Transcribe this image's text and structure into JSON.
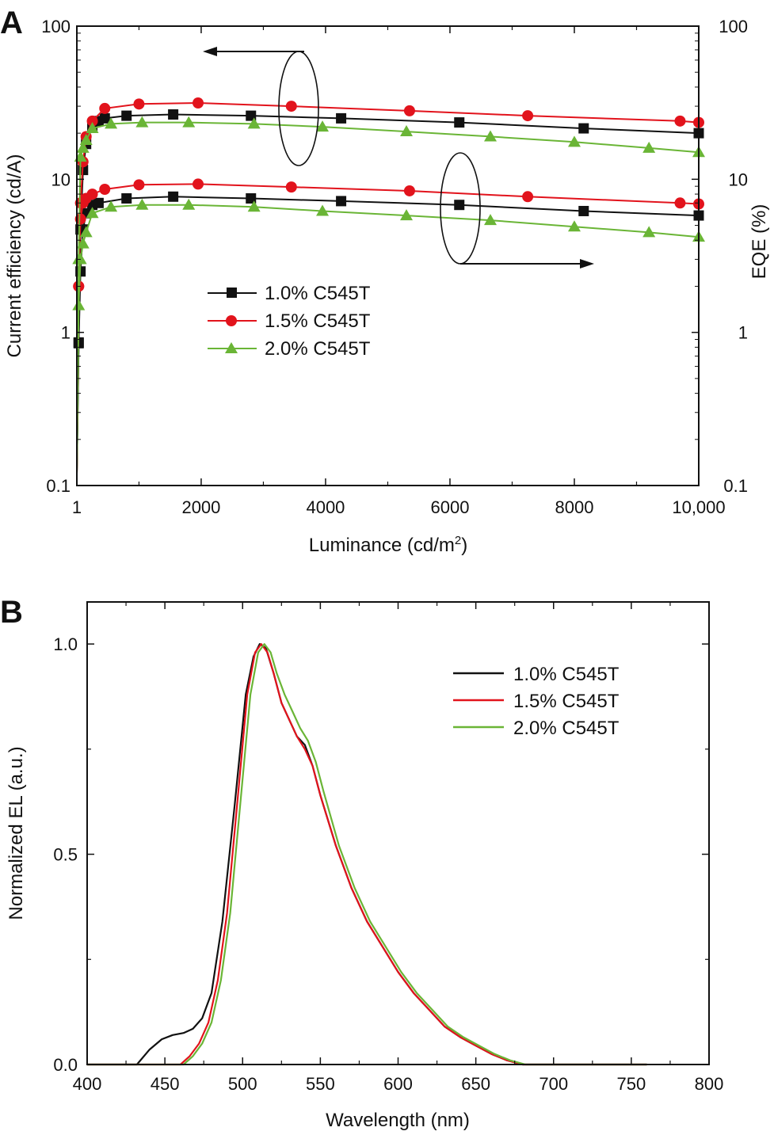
{
  "colors": {
    "series": [
      "#111111",
      "#e2131c",
      "#6ab536"
    ],
    "axis": "#111111"
  },
  "chart_data": [
    {
      "panel": "A",
      "type": "line",
      "xlabel": "Luminance (cd/m",
      "xlabel_sup": "2",
      "xlabel_close": ")",
      "ylabel": "Current efficiency (cd/A)",
      "y2label": "EQE (%)",
      "xlim": [
        1,
        10000
      ],
      "ylim": [
        0.1,
        100
      ],
      "yscale": "log",
      "xticks": [
        {
          "value": 1,
          "label": "1"
        },
        {
          "value": 2000,
          "label": "2000"
        },
        {
          "value": 4000,
          "label": "4000"
        },
        {
          "value": 6000,
          "label": "6000"
        },
        {
          "value": 8000,
          "label": "8000"
        },
        {
          "value": 10000,
          "label": "10,000"
        }
      ],
      "yticks": [
        {
          "value": 100,
          "label": "100"
        },
        {
          "value": 10,
          "label": "10"
        },
        {
          "value": 1,
          "label": "1"
        },
        {
          "value": 0.1,
          "label": "0.1"
        }
      ],
      "y2ticks": [
        {
          "value": 100,
          "label": "100"
        },
        {
          "value": 10,
          "label": "10"
        },
        {
          "value": 1,
          "label": "1"
        },
        {
          "value": 0.1,
          "label": "0.1"
        }
      ],
      "legend_position": "center-left",
      "annotations": [
        "ellipse around upper curves with arrow pointing left (current efficiency axis)",
        "ellipse around lower curves with arrow pointing right (EQE axis)"
      ],
      "series": [
        {
          "name": "1.0% C545T",
          "marker": "square",
          "current_efficiency": {
            "x": [
              1,
              30,
              60,
              100,
              150,
              250,
              350,
              450,
              800,
              1550,
              2800,
              4250,
              6150,
              8150,
              10000
            ],
            "y": [
              0.12,
              0.85,
              4.7,
              11.5,
              17,
              22,
              24,
              25,
              26,
              26.5,
              26,
              25,
              23.5,
              21.5,
              20
            ]
          },
          "eqe": {
            "x": [
              1,
              30,
              60,
              100,
              150,
              250,
              350,
              800,
              1550,
              2800,
              4250,
              6150,
              8150,
              10000
            ],
            "y": [
              0.12,
              0.86,
              2.5,
              4.7,
              6,
              6.8,
              7,
              7.5,
              7.7,
              7.5,
              7.2,
              6.8,
              6.2,
              5.8
            ]
          }
        },
        {
          "name": "1.5% C545T",
          "marker": "circle",
          "current_efficiency": {
            "x": [
              1,
              30,
              60,
              100,
              150,
              250,
              450,
              1000,
              1950,
              3450,
              5350,
              7250,
              9700,
              10000
            ],
            "y": [
              0.12,
              2,
              7,
              13,
              19,
              24,
              29,
              31,
              31.5,
              30,
              28,
              26,
              24,
              23.5
            ]
          },
          "eqe": {
            "x": [
              1,
              30,
              60,
              100,
              150,
              250,
              450,
              1000,
              1950,
              3450,
              5350,
              7250,
              9700,
              10000
            ],
            "y": [
              0.12,
              2,
              5.5,
              7,
              7.5,
              8,
              8.6,
              9.2,
              9.3,
              8.9,
              8.4,
              7.7,
              7,
              6.9
            ]
          }
        },
        {
          "name": "2.0% C545T",
          "marker": "triangle",
          "current_efficiency": {
            "x": [
              1,
              30,
              60,
              100,
              150,
              250,
              550,
              1050,
              1800,
              2850,
              3950,
              5300,
              6650,
              8000,
              9200,
              10000
            ],
            "y": [
              0.12,
              3,
              14,
              16,
              18,
              21.5,
              23,
              23.5,
              23.5,
              23,
              22,
              20.5,
              19,
              17.5,
              16,
              15
            ]
          },
          "eqe": {
            "x": [
              1,
              30,
              60,
              100,
              150,
              250,
              550,
              1050,
              1800,
              2850,
              3950,
              5300,
              6650,
              8000,
              9200,
              10000
            ],
            "y": [
              0.12,
              1.5,
              3,
              3.8,
              4.5,
              6,
              6.6,
              6.8,
              6.8,
              6.6,
              6.2,
              5.8,
              5.4,
              4.9,
              4.5,
              4.2
            ]
          }
        }
      ],
      "legend": [
        "1.0% C545T",
        "1.5% C545T",
        "2.0% C545T"
      ]
    },
    {
      "panel": "B",
      "type": "line",
      "xlabel": "Wavelength (nm)",
      "ylabel": "Normalized EL (a.u.)",
      "xlim": [
        400,
        800
      ],
      "ylim": [
        0,
        1.1
      ],
      "xticks": [
        {
          "value": 400,
          "label": "400"
        },
        {
          "value": 450,
          "label": "450"
        },
        {
          "value": 500,
          "label": "500"
        },
        {
          "value": 550,
          "label": "550"
        },
        {
          "value": 600,
          "label": "600"
        },
        {
          "value": 650,
          "label": "650"
        },
        {
          "value": 700,
          "label": "700"
        },
        {
          "value": 750,
          "label": "750"
        },
        {
          "value": 800,
          "label": "800"
        }
      ],
      "yticks": [
        {
          "value": 0.0,
          "label": "0.0"
        },
        {
          "value": 0.5,
          "label": "0.5"
        },
        {
          "value": 1.0,
          "label": "1.0"
        }
      ],
      "legend_position": "top-right",
      "series": [
        {
          "name": "1.0% C545T",
          "x": [
            400,
            432,
            440,
            448,
            455,
            462,
            468,
            474,
            480,
            487,
            495,
            502,
            507,
            511,
            515,
            520,
            525,
            530,
            535,
            540,
            545,
            550,
            560,
            570,
            580,
            590,
            600,
            610,
            620,
            630,
            640,
            650,
            660,
            670,
            680,
            700,
            760
          ],
          "y": [
            0,
            0,
            0.035,
            0.06,
            0.07,
            0.075,
            0.085,
            0.11,
            0.17,
            0.34,
            0.62,
            0.88,
            0.97,
            1.0,
            0.99,
            0.93,
            0.86,
            0.82,
            0.78,
            0.76,
            0.71,
            0.64,
            0.52,
            0.42,
            0.34,
            0.28,
            0.22,
            0.17,
            0.13,
            0.09,
            0.065,
            0.045,
            0.025,
            0.01,
            0,
            0,
            0
          ]
        },
        {
          "name": "1.5% C545T",
          "x": [
            400,
            460,
            466,
            472,
            478,
            484,
            490,
            497,
            503,
            508,
            512,
            516,
            520,
            525,
            530,
            535,
            540,
            545,
            550,
            560,
            570,
            580,
            590,
            600,
            610,
            620,
            630,
            640,
            650,
            660,
            670,
            680,
            760
          ],
          "y": [
            0,
            0,
            0.02,
            0.05,
            0.1,
            0.2,
            0.36,
            0.64,
            0.88,
            0.98,
            1.0,
            0.98,
            0.93,
            0.86,
            0.82,
            0.78,
            0.75,
            0.71,
            0.64,
            0.52,
            0.42,
            0.34,
            0.28,
            0.22,
            0.17,
            0.13,
            0.09,
            0.065,
            0.045,
            0.025,
            0.01,
            0,
            0
          ]
        },
        {
          "name": "2.0% C545T",
          "x": [
            400,
            462,
            468,
            474,
            480,
            486,
            492,
            499,
            505,
            510,
            514,
            518,
            522,
            527,
            532,
            537,
            542,
            547,
            552,
            562,
            572,
            582,
            592,
            602,
            612,
            622,
            632,
            642,
            652,
            662,
            672,
            682,
            760
          ],
          "y": [
            0,
            0,
            0.02,
            0.05,
            0.1,
            0.2,
            0.36,
            0.64,
            0.88,
            0.98,
            1.0,
            0.98,
            0.93,
            0.88,
            0.84,
            0.8,
            0.77,
            0.72,
            0.65,
            0.52,
            0.42,
            0.34,
            0.28,
            0.22,
            0.17,
            0.13,
            0.09,
            0.065,
            0.045,
            0.025,
            0.01,
            0,
            0
          ]
        }
      ],
      "legend": [
        "1.0% C545T",
        "1.5% C545T",
        "2.0% C545T"
      ]
    }
  ]
}
